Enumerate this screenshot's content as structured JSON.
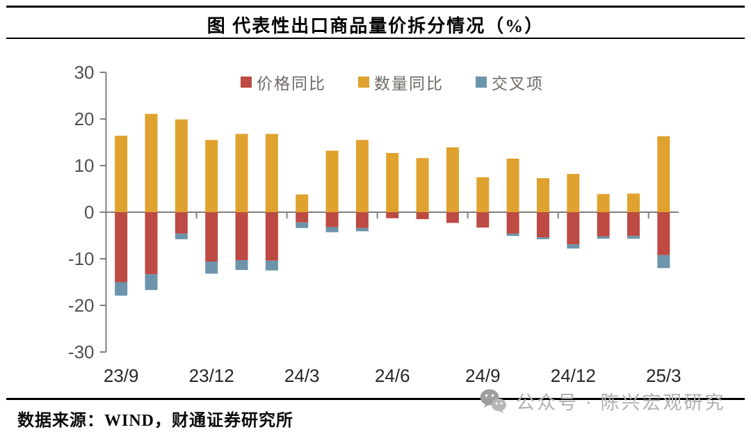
{
  "title": "图 代表性出口商品量价拆分情况（%）",
  "legend": [
    {
      "key": "price-yoy",
      "label": "价格同比",
      "color": "#BD4A43"
    },
    {
      "key": "quantity-yoy",
      "label": "数量同比",
      "color": "#DFA22E"
    },
    {
      "key": "cross-term",
      "label": "交叉项",
      "color": "#6C95AB"
    }
  ],
  "chart_data": {
    "type": "bar",
    "stacked": true,
    "title": "图 代表性出口商品量价拆分情况（%）",
    "xlabel": "",
    "ylabel": "",
    "ylim": [
      -30,
      30
    ],
    "y_ticks": [
      30,
      20,
      10,
      0,
      -10,
      -20,
      -30
    ],
    "grid": false,
    "legend_position": "top",
    "categories": [
      "23/9",
      "23/10",
      "23/11",
      "23/12",
      "24/1",
      "24/2",
      "24/3",
      "24/4",
      "24/5",
      "24/6",
      "24/7",
      "24/8",
      "24/9",
      "24/10",
      "24/11",
      "24/12",
      "25/1",
      "25/2",
      "25/3"
    ],
    "x_tick_labels": [
      "23/9",
      "23/12",
      "24/3",
      "24/6",
      "24/9",
      "24/12",
      "25/3"
    ],
    "x_label_every": 3,
    "series": [
      {
        "name": "价格同比",
        "color": "#BD4A43",
        "values": [
          -15.0,
          -13.3,
          -4.6,
          -10.6,
          -10.3,
          -10.4,
          -2.2,
          -3.2,
          -3.4,
          -1.3,
          -1.5,
          -2.3,
          -3.3,
          -4.6,
          -5.4,
          -6.9,
          -5.2,
          -5.1,
          -9.2
        ]
      },
      {
        "name": "数量同比",
        "color": "#DFA22E",
        "values": [
          16.4,
          21.1,
          19.9,
          15.5,
          16.8,
          16.8,
          3.8,
          13.2,
          15.5,
          12.7,
          11.6,
          13.9,
          7.5,
          11.5,
          7.3,
          8.2,
          3.9,
          4.0,
          16.3
        ]
      },
      {
        "name": "交叉项",
        "color": "#6C95AB",
        "values": [
          -2.9,
          -3.4,
          -1.2,
          -2.6,
          -2.1,
          -2.1,
          -1.2,
          -1.1,
          -0.7,
          0,
          0,
          0,
          0,
          -0.5,
          -0.4,
          -0.9,
          -0.5,
          -0.6,
          -2.8
        ]
      }
    ]
  },
  "footer": {
    "source": "数据来源：WIND，财通证券研究所"
  },
  "watermark": {
    "text": "公众号 · 陈兴宏观研究",
    "icon": "wechat-icon"
  },
  "colors": {
    "axis": "#7F7F7F",
    "y_tick_label": "#515151",
    "x_tick_label": "#262626",
    "watermark_icon": "#9e9e9e",
    "rule": "#000000"
  }
}
